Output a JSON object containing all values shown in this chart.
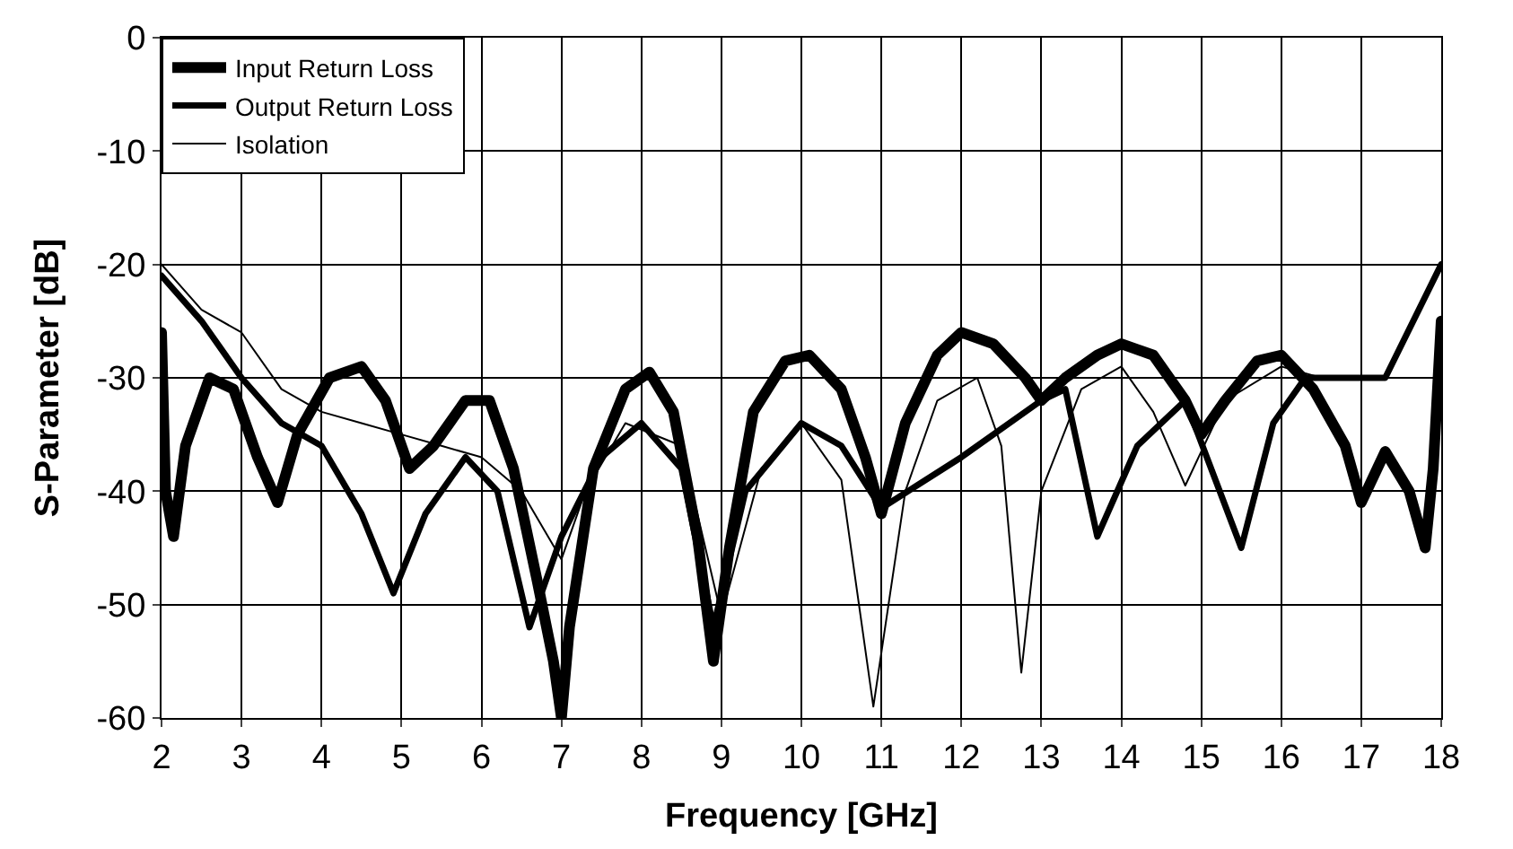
{
  "chart_data": {
    "type": "line",
    "xlabel": "Frequency [GHz]",
    "ylabel": "S-Parameter [dB]",
    "xlim": [
      2,
      18
    ],
    "xticks": [
      2,
      3,
      4,
      5,
      6,
      7,
      8,
      9,
      10,
      11,
      12,
      13,
      14,
      15,
      16,
      17,
      18
    ],
    "ylim": [
      -60,
      0
    ],
    "yticks": [
      -60,
      -50,
      -40,
      -30,
      -20,
      -10,
      0
    ],
    "grid": true,
    "legend": "top left",
    "line_style": "solid",
    "series": [
      {
        "name": "Input Return Loss",
        "color": "#000000",
        "x": [
          2,
          2.05,
          2.15,
          2.3,
          2.6,
          2.9,
          3.2,
          3.45,
          3.7,
          4.1,
          4.5,
          4.8,
          5.1,
          5.4,
          5.8,
          6.1,
          6.4,
          6.7,
          6.9,
          7.0,
          7.1,
          7.4,
          7.8,
          8.1,
          8.4,
          8.7,
          8.9,
          9.1,
          9.4,
          9.8,
          10.1,
          10.5,
          10.8,
          11.0,
          11.3,
          11.7,
          12.0,
          12.4,
          12.8,
          13.0,
          13.3,
          13.7,
          14.0,
          14.4,
          14.8,
          15.0,
          15.3,
          15.7,
          16.0,
          16.4,
          16.8,
          17.0,
          17.3,
          17.6,
          17.8,
          17.9,
          18
        ],
        "values": [
          -26,
          -40,
          -44,
          -36,
          -30,
          -31,
          -37,
          -41,
          -35,
          -30,
          -29,
          -32,
          -38,
          -36,
          -32,
          -32,
          -38,
          -48,
          -55,
          -60,
          -52,
          -38,
          -31,
          -29.5,
          -33,
          -44,
          -55,
          -45,
          -33,
          -28.5,
          -28,
          -31,
          -37,
          -42,
          -34,
          -28,
          -26,
          -27,
          -30,
          -32,
          -30,
          -28,
          -27,
          -28,
          -32,
          -35,
          -32,
          -28.5,
          -28,
          -31,
          -36,
          -41,
          -36.5,
          -40,
          -45,
          -38,
          -25
        ]
      },
      {
        "name": "Output Return Loss",
        "color": "#000000",
        "x": [
          2,
          2.5,
          3,
          3.5,
          4,
          4.5,
          4.9,
          5.3,
          5.8,
          6.2,
          6.6,
          7.0,
          7.5,
          8.0,
          8.5,
          8.9,
          9.3,
          10.0,
          10.5,
          11.0,
          12.0,
          13.0,
          13.3,
          13.7,
          14.2,
          14.8,
          15.5,
          15.9,
          16.3,
          17.3,
          18
        ],
        "values": [
          -21,
          -25,
          -30,
          -34,
          -36,
          -42,
          -49,
          -42,
          -37,
          -40,
          -52,
          -44,
          -37,
          -34,
          -38,
          -52,
          -40,
          -34,
          -36,
          -41.5,
          -37,
          -32,
          -31,
          -44,
          -36,
          -32,
          -45,
          -34,
          -30,
          -30,
          -20
        ]
      },
      {
        "name": "Isolation",
        "color": "#000000",
        "x": [
          2,
          2.5,
          3,
          3.5,
          4,
          4.5,
          5,
          5.5,
          6,
          6.5,
          7,
          7.3,
          7.8,
          8.5,
          9,
          9.5,
          10,
          10.5,
          10.9,
          11.3,
          11.7,
          12.2,
          12.5,
          12.75,
          13,
          13.5,
          14,
          14.4,
          14.8,
          15.3,
          16,
          16.5,
          17.3,
          18
        ],
        "values": [
          -20,
          -24,
          -26,
          -31,
          -33,
          -34,
          -35,
          -36,
          -37,
          -40,
          -46,
          -40,
          -34,
          -36,
          -51,
          -38,
          -34,
          -39,
          -59,
          -40,
          -32,
          -30,
          -36,
          -56,
          -40,
          -31,
          -29,
          -33,
          -39.5,
          -32,
          -29,
          -30,
          -30,
          -20
        ]
      }
    ]
  }
}
